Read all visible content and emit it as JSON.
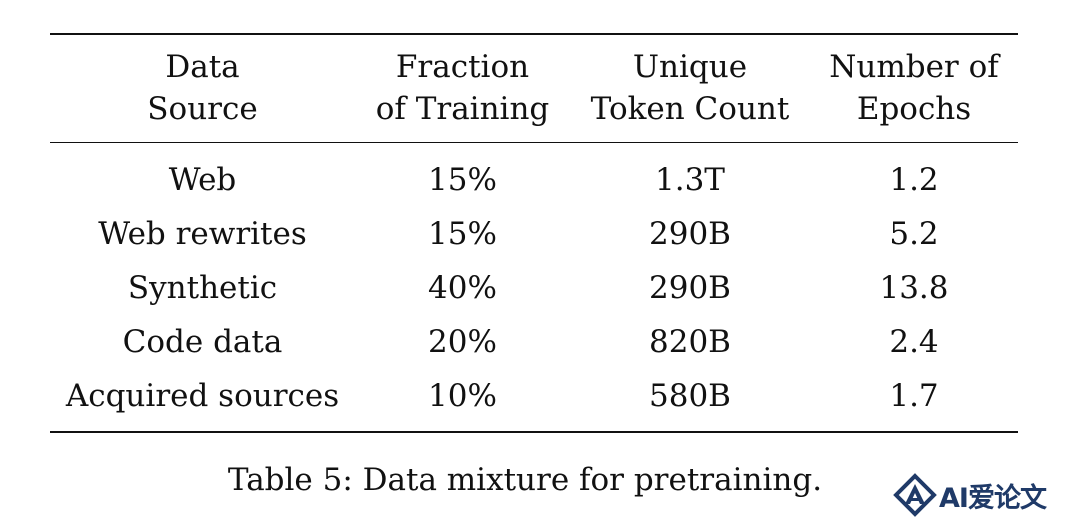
{
  "table": {
    "headers": [
      [
        "Data",
        "Source"
      ],
      [
        "Fraction",
        "of Training"
      ],
      [
        "Unique",
        "Token Count"
      ],
      [
        "Number of",
        "Epochs"
      ]
    ],
    "rows": [
      [
        "Web",
        "15%",
        "1.3T",
        "1.2"
      ],
      [
        "Web rewrites",
        "15%",
        "290B",
        "5.2"
      ],
      [
        "Synthetic",
        "40%",
        "290B",
        "13.8"
      ],
      [
        "Code data",
        "20%",
        "820B",
        "2.4"
      ],
      [
        "Acquired sources",
        "10%",
        "580B",
        "1.7"
      ]
    ]
  },
  "caption": "Table 5: Data mixture for pretraining.",
  "watermark": {
    "text": "AI爱论文",
    "icon": "a-logo-icon",
    "color": "#1f3a68"
  }
}
